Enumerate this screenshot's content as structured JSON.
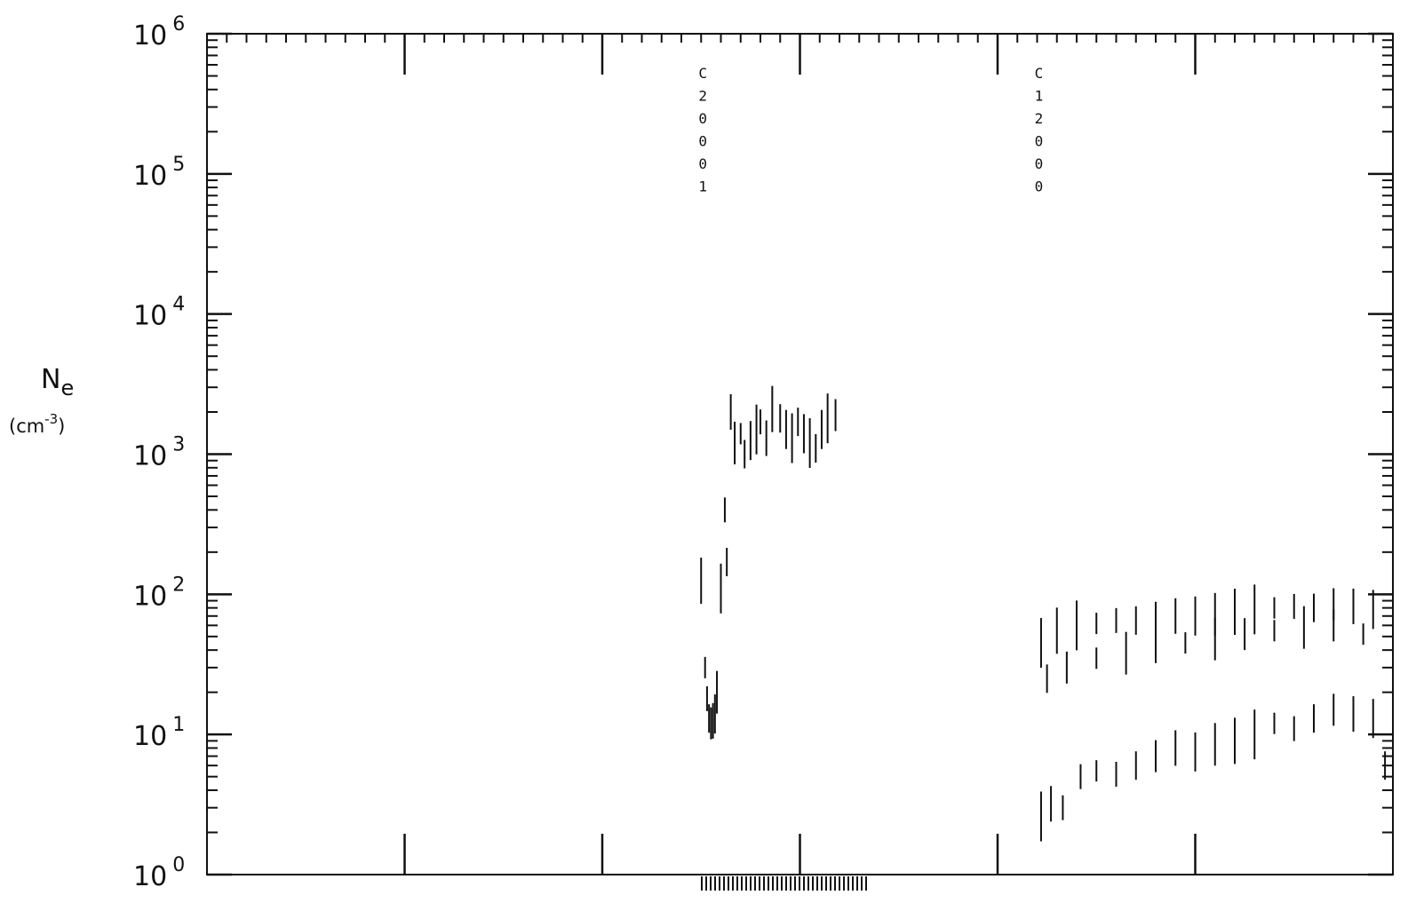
{
  "chart_data": {
    "type": "scatter",
    "title": "",
    "ylabel_main": "N",
    "ylabel_sub": "e",
    "yunit_base": "(cm",
    "yunit_exp": "-3",
    "yunit_close": ")",
    "yscale": "log",
    "ylim": [
      1,
      1000000
    ],
    "y_tick_base": "10",
    "y_tick_exponents": [
      "0",
      "1",
      "2",
      "3",
      "4",
      "5",
      "6"
    ],
    "xlim": [
      0,
      6
    ],
    "x_major_ticks": [
      1,
      2,
      3,
      4,
      5
    ],
    "vertical_labels": [
      {
        "text": "C20001",
        "x": 2.5
      },
      {
        "text": "C12000",
        "x": 4.2
      }
    ],
    "series": [
      {
        "points": [
          [
            2.5,
            125
          ],
          [
            2.52,
            30
          ],
          [
            2.53,
            18
          ],
          [
            2.54,
            13
          ],
          [
            2.55,
            12
          ],
          [
            2.56,
            12.5
          ],
          [
            2.57,
            14
          ],
          [
            2.58,
            20
          ],
          [
            2.6,
            110
          ],
          [
            2.62,
            400
          ],
          [
            2.63,
            170
          ],
          [
            2.65,
            2000
          ],
          [
            2.67,
            1200
          ],
          [
            2.7,
            1400
          ],
          [
            2.72,
            1000
          ],
          [
            2.75,
            1250
          ],
          [
            2.78,
            1500
          ],
          [
            2.8,
            1700
          ],
          [
            2.83,
            1300
          ],
          [
            2.86,
            2100
          ],
          [
            2.9,
            1800
          ],
          [
            2.93,
            1500
          ],
          [
            2.96,
            1300
          ],
          [
            2.99,
            1700
          ],
          [
            3.02,
            1400
          ],
          [
            3.05,
            1200
          ],
          [
            3.08,
            1100
          ],
          [
            3.11,
            1500
          ],
          [
            3.14,
            1800
          ],
          [
            3.18,
            1900
          ]
        ]
      },
      {
        "points": [
          [
            4.22,
            45
          ],
          [
            4.3,
            55
          ],
          [
            4.4,
            60
          ],
          [
            4.5,
            62
          ],
          [
            4.6,
            65
          ],
          [
            4.7,
            65
          ],
          [
            4.8,
            68
          ],
          [
            4.9,
            70
          ],
          [
            5.0,
            70
          ],
          [
            5.1,
            72
          ],
          [
            5.2,
            75
          ],
          [
            5.3,
            78
          ],
          [
            5.4,
            80
          ],
          [
            5.5,
            82
          ],
          [
            5.6,
            80
          ],
          [
            5.7,
            85
          ],
          [
            5.8,
            82
          ],
          [
            5.9,
            78
          ],
          [
            6.0,
            75
          ],
          [
            4.25,
            25
          ],
          [
            4.35,
            30
          ],
          [
            4.5,
            35
          ],
          [
            4.65,
            38
          ],
          [
            4.8,
            42
          ],
          [
            4.95,
            45
          ],
          [
            5.1,
            48
          ],
          [
            5.25,
            52
          ],
          [
            5.4,
            55
          ],
          [
            5.55,
            58
          ],
          [
            5.7,
            60
          ],
          [
            5.85,
            52
          ]
        ]
      },
      {
        "points": [
          [
            4.22,
            2.6
          ],
          [
            4.27,
            3.2
          ],
          [
            4.33,
            3
          ],
          [
            4.42,
            5
          ],
          [
            4.5,
            5.5
          ],
          [
            4.6,
            5.2
          ],
          [
            4.7,
            6
          ],
          [
            4.8,
            7
          ],
          [
            4.9,
            8
          ],
          [
            5.0,
            7.5
          ],
          [
            5.1,
            8.5
          ],
          [
            5.2,
            9
          ],
          [
            5.3,
            10
          ],
          [
            5.4,
            12
          ],
          [
            5.5,
            11
          ],
          [
            5.6,
            13
          ],
          [
            5.7,
            15
          ],
          [
            5.8,
            14
          ],
          [
            5.9,
            13
          ],
          [
            5.96,
            6
          ],
          [
            6.0,
            7
          ]
        ]
      }
    ]
  }
}
